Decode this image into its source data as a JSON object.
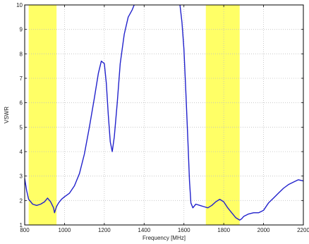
{
  "chart_data": {
    "type": "line",
    "xlabel": "Frequency [MHz]",
    "ylabel": "VSWR",
    "xlim": [
      800,
      2200
    ],
    "ylim": [
      1,
      10
    ],
    "x_ticks": [
      "800",
      "1000",
      "1200",
      "1400",
      "1600",
      "1800",
      "2000",
      "2200"
    ],
    "y_ticks": [
      "1",
      "2",
      "3",
      "4",
      "5",
      "6",
      "7",
      "8",
      "9",
      "10"
    ],
    "grid": "dashed",
    "colors": {
      "line": "#2222cc",
      "band": "#ffff66",
      "frame": "#000000",
      "grid": "#c0c0c0"
    },
    "bands": [
      {
        "from": 820,
        "to": 960
      },
      {
        "from": 1710,
        "to": 1880
      }
    ],
    "series": [
      {
        "values": [
          [
            800,
            2.9
          ],
          [
            810,
            2.4
          ],
          [
            820,
            2.05
          ],
          [
            840,
            1.85
          ],
          [
            860,
            1.8
          ],
          [
            880,
            1.85
          ],
          [
            900,
            1.95
          ],
          [
            915,
            2.1
          ],
          [
            930,
            1.95
          ],
          [
            945,
            1.7
          ],
          [
            950,
            1.5
          ],
          [
            960,
            1.75
          ],
          [
            970,
            1.9
          ],
          [
            985,
            2.05
          ],
          [
            1000,
            2.15
          ],
          [
            1025,
            2.3
          ],
          [
            1050,
            2.6
          ],
          [
            1075,
            3.1
          ],
          [
            1100,
            3.9
          ],
          [
            1125,
            5.0
          ],
          [
            1150,
            6.2
          ],
          [
            1170,
            7.2
          ],
          [
            1185,
            7.7
          ],
          [
            1200,
            7.6
          ],
          [
            1210,
            6.8
          ],
          [
            1220,
            5.5
          ],
          [
            1230,
            4.4
          ],
          [
            1240,
            4.0
          ],
          [
            1250,
            4.6
          ],
          [
            1265,
            6.0
          ],
          [
            1280,
            7.6
          ],
          [
            1300,
            8.8
          ],
          [
            1320,
            9.5
          ],
          [
            1340,
            9.8
          ],
          [
            1350,
            10.0
          ]
        ]
      },
      {
        "values": [
          [
            1580,
            10.0
          ],
          [
            1590,
            9.3
          ],
          [
            1600,
            8.2
          ],
          [
            1610,
            6.4
          ],
          [
            1620,
            4.4
          ],
          [
            1628,
            2.8
          ],
          [
            1635,
            1.9
          ],
          [
            1645,
            1.7
          ],
          [
            1660,
            1.85
          ],
          [
            1680,
            1.8
          ],
          [
            1700,
            1.75
          ],
          [
            1720,
            1.7
          ],
          [
            1740,
            1.8
          ],
          [
            1760,
            1.95
          ],
          [
            1780,
            2.05
          ],
          [
            1800,
            1.95
          ],
          [
            1820,
            1.7
          ],
          [
            1840,
            1.5
          ],
          [
            1860,
            1.3
          ],
          [
            1880,
            1.2
          ],
          [
            1890,
            1.25
          ],
          [
            1900,
            1.35
          ],
          [
            1925,
            1.45
          ],
          [
            1950,
            1.5
          ],
          [
            1975,
            1.5
          ],
          [
            2000,
            1.6
          ],
          [
            2025,
            1.9
          ],
          [
            2050,
            2.1
          ],
          [
            2075,
            2.3
          ],
          [
            2100,
            2.5
          ],
          [
            2125,
            2.65
          ],
          [
            2150,
            2.75
          ],
          [
            2175,
            2.85
          ],
          [
            2200,
            2.8
          ]
        ]
      }
    ]
  }
}
